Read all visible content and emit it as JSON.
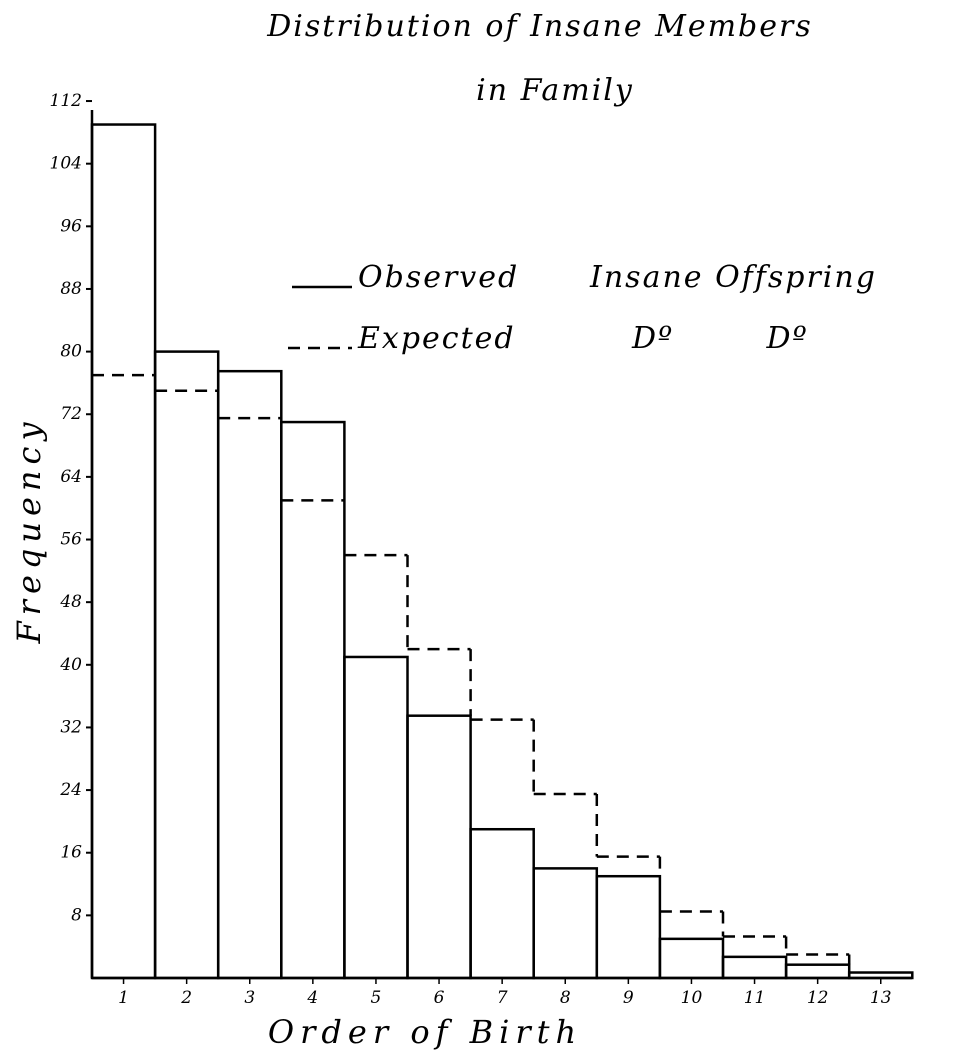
{
  "chart_data": {
    "type": "bar",
    "title": "Distribution of Insane Members",
    "subtitle": "in Family",
    "xlabel": "Order of Birth",
    "ylabel": "Frequency",
    "ylim": [
      0,
      112
    ],
    "yticks": [
      8,
      16,
      24,
      32,
      40,
      48,
      56,
      64,
      72,
      80,
      88,
      96,
      104,
      112
    ],
    "ytick_labels": [
      "8",
      "16",
      "24",
      "32",
      "40",
      "48",
      "56",
      "64",
      "72",
      "80",
      "88",
      "96",
      "104",
      "112"
    ],
    "categories": [
      "1",
      "2",
      "3",
      "4",
      "5",
      "6",
      "7",
      "8",
      "9",
      "10",
      "11",
      "12",
      "13"
    ],
    "legend_placement": "upper-right",
    "series": [
      {
        "name": "Observed Insane Offspring",
        "style": "solid",
        "values": [
          109,
          80,
          77.5,
          71,
          41,
          33.5,
          19,
          14,
          13,
          5,
          2.7,
          1.7,
          0.7
        ]
      },
      {
        "name": "Expected Do Do",
        "style": "dashed",
        "values": [
          77,
          75,
          71.5,
          61,
          54,
          42,
          33,
          23.5,
          15.5,
          8.5,
          5.3,
          3,
          0
        ]
      }
    ],
    "legend": [
      {
        "label": "Observed",
        "rest": "Insane Offspring",
        "style": "solid"
      },
      {
        "label": "Expected",
        "rest": "Dº        Dº",
        "style": "dashed"
      }
    ],
    "grid": false,
    "colors": {
      "ink": "#000000",
      "paper": "#ffffff"
    }
  }
}
